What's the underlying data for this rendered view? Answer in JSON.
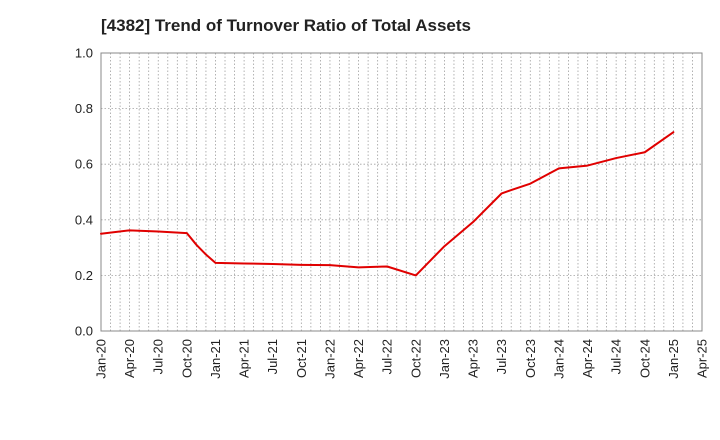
{
  "chart_data": {
    "type": "line",
    "title": "[4382]  Trend of Turnover Ratio of Total Assets",
    "xlabel": "",
    "ylabel": "",
    "x_tick_labels": [
      "Jan-20",
      "Apr-20",
      "Jul-20",
      "Oct-20",
      "Jan-21",
      "Apr-21",
      "Jul-21",
      "Oct-21",
      "Jan-22",
      "Apr-22",
      "Jul-22",
      "Oct-22",
      "Jan-23",
      "Apr-23",
      "Jul-23",
      "Oct-23",
      "Jan-24",
      "Apr-24",
      "Jul-24",
      "Oct-24",
      "Jan-25",
      "Apr-25"
    ],
    "y_tick_labels": [
      "0.0",
      "0.2",
      "0.4",
      "0.6",
      "0.8",
      "1.0"
    ],
    "ylim": [
      0,
      1.0
    ],
    "grid": true,
    "legend": "none",
    "series": [
      {
        "color": "#e00000",
        "x": [
          "2020-01",
          "2020-04",
          "2020-07",
          "2020-10",
          "2020-11",
          "2020-12",
          "2021-01",
          "2021-04",
          "2021-07",
          "2021-10",
          "2022-01",
          "2022-04",
          "2022-07",
          "2022-10",
          "2023-01",
          "2023-04",
          "2023-07",
          "2023-08",
          "2023-10",
          "2024-01",
          "2024-04",
          "2024-07",
          "2024-10",
          "2025-01"
        ],
        "values": [
          0.35,
          0.362,
          0.358,
          0.352,
          0.31,
          0.275,
          0.245,
          0.243,
          0.241,
          0.238,
          0.237,
          0.229,
          0.232,
          0.2,
          0.305,
          0.392,
          0.495,
          0.507,
          0.53,
          0.585,
          0.595,
          0.622,
          0.643,
          0.715
        ]
      }
    ]
  }
}
